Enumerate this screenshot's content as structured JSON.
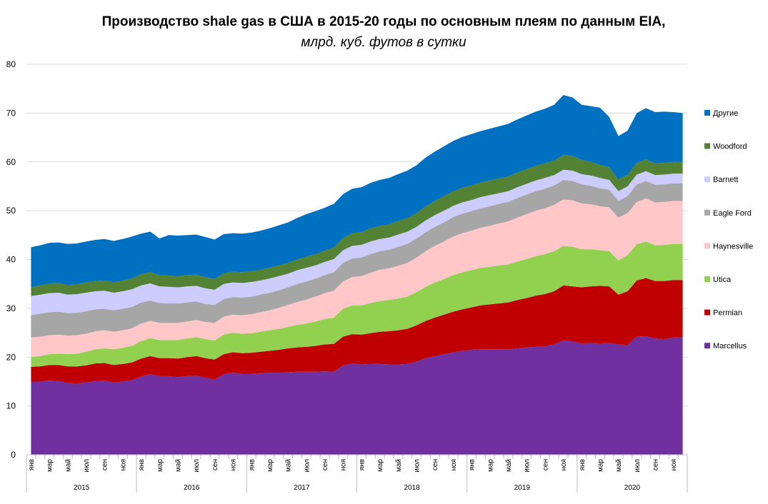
{
  "chart_data": {
    "type": "stacked_area",
    "title": "Производство shale gas в США в 2015-20 годы по основным плеям по данным EIA,",
    "subtitle": "млрд. куб. футов в сутки",
    "categories": [
      "янв",
      null,
      "мар",
      null,
      "май",
      null,
      "июл",
      null,
      "сен",
      null,
      "ноя",
      null,
      "янв",
      null,
      "мар",
      null,
      "май",
      null,
      "июл",
      null,
      "сен",
      null,
      "ноя",
      null,
      "янв",
      null,
      "мар",
      null,
      "май",
      null,
      "июл",
      null,
      "сен",
      null,
      "ноя",
      null,
      "янв",
      null,
      "мар",
      null,
      "май",
      null,
      "июл",
      null,
      "сен",
      null,
      "ноя",
      null,
      "янв",
      null,
      "мар",
      null,
      "май",
      null,
      "июл",
      null,
      "сен",
      null,
      "ноя",
      null,
      "янв",
      null,
      "мар",
      null,
      "май",
      null,
      "июл",
      null,
      "сен",
      null,
      "ноя",
      null
    ],
    "year_groups": [
      "2015",
      "2016",
      "2017",
      "2018",
      "2019",
      "2020"
    ],
    "ylim": [
      0,
      80
    ],
    "yticks": [
      0,
      10,
      20,
      30,
      40,
      50,
      60,
      70,
      80
    ],
    "grid": true,
    "legend": "right",
    "series": [
      {
        "name": "Marcellus",
        "color": "#7030a0",
        "values": [
          15,
          15,
          15.2,
          15.1,
          14.7,
          14.6,
          14.8,
          15.1,
          15.2,
          14.8,
          15,
          15.3,
          16,
          16.5,
          16.1,
          16.1,
          15.9,
          16.1,
          16.2,
          15.8,
          15.4,
          16.5,
          16.8,
          16.6,
          16.6,
          16.7,
          16.8,
          16.8,
          16.9,
          17,
          17,
          17,
          17.1,
          17,
          18.3,
          18.7,
          18.5,
          18.6,
          18.6,
          18.5,
          18.5,
          18.6,
          19.1,
          19.8,
          20.2,
          20.6,
          21,
          21.3,
          21.5,
          21.6,
          21.6,
          21.6,
          21.6,
          21.8,
          22,
          22.1,
          22.2,
          22.6,
          23.5,
          23.2,
          22.8,
          22.9,
          22.8,
          22.9,
          22.6,
          22.5,
          24.2,
          24.3,
          23.8,
          23.7,
          24,
          24.1
        ]
      },
      {
        "name": "Permian",
        "color": "#c00000",
        "values": [
          3.0,
          3.1,
          3.2,
          3.3,
          3.4,
          3.5,
          3.5,
          3.6,
          3.6,
          3.6,
          3.6,
          3.6,
          3.7,
          3.7,
          3.7,
          3.7,
          3.8,
          3.9,
          4.0,
          4.0,
          4.1,
          4.1,
          4.2,
          4.2,
          4.3,
          4.4,
          4.5,
          4.7,
          4.9,
          5.0,
          5.1,
          5.3,
          5.5,
          5.7,
          5.9,
          6.0,
          6.1,
          6.3,
          6.6,
          6.8,
          7.0,
          7.2,
          7.4,
          7.6,
          7.9,
          8.1,
          8.3,
          8.5,
          8.7,
          9.0,
          9.2,
          9.4,
          9.6,
          9.9,
          10.1,
          10.5,
          10.7,
          10.9,
          11.2,
          11.3,
          11.5,
          11.6,
          11.8,
          11.6,
          10.2,
          11.0,
          11.5,
          11.9,
          11.8,
          11.9,
          11.8,
          11.7
        ]
      },
      {
        "name": "Utica",
        "color": "#92d050",
        "values": [
          2.0,
          2.1,
          2.2,
          2.3,
          2.5,
          2.6,
          2.8,
          2.9,
          3.0,
          3.2,
          3.3,
          3.4,
          3.6,
          3.7,
          3.7,
          3.7,
          3.8,
          3.8,
          3.9,
          3.9,
          3.9,
          4.0,
          4.0,
          4.0,
          4.0,
          4.1,
          4.2,
          4.3,
          4.4,
          4.6,
          4.8,
          5.0,
          5.2,
          5.4,
          5.7,
          5.9,
          6.0,
          6.2,
          6.3,
          6.4,
          6.5,
          6.6,
          6.8,
          7.0,
          7.2,
          7.3,
          7.5,
          7.6,
          7.6,
          7.7,
          7.7,
          7.8,
          7.8,
          7.9,
          8.0,
          8.1,
          8.2,
          8.2,
          8.1,
          8.1,
          7.8,
          7.6,
          7.3,
          7.2,
          7.0,
          7.4,
          7.4,
          7.5,
          7.3,
          7.4,
          7.4,
          7.4
        ]
      },
      {
        "name": "Haynesville",
        "color": "#ffc7c7",
        "values": [
          4.0,
          4.0,
          3.9,
          3.9,
          3.8,
          3.8,
          3.7,
          3.7,
          3.7,
          3.6,
          3.6,
          3.6,
          3.6,
          3.5,
          3.5,
          3.5,
          3.5,
          3.5,
          3.5,
          3.5,
          3.6,
          3.7,
          3.7,
          3.8,
          3.9,
          4.0,
          4.1,
          4.3,
          4.5,
          4.7,
          4.9,
          5.1,
          5.3,
          5.5,
          5.6,
          5.8,
          6.0,
          6.2,
          6.4,
          6.5,
          6.7,
          6.9,
          7.1,
          7.3,
          7.5,
          7.7,
          7.9,
          8.0,
          8.1,
          8.2,
          8.4,
          8.6,
          8.8,
          9.0,
          9.2,
          9.3,
          9.4,
          9.5,
          9.5,
          9.5,
          9.4,
          9.2,
          9.0,
          9.0,
          8.8,
          8.6,
          8.7,
          8.8,
          8.8,
          8.8,
          8.8,
          8.8
        ]
      },
      {
        "name": "Eagle Ford",
        "color": "#a6a6a6",
        "values": [
          4.6,
          4.7,
          4.7,
          4.7,
          4.6,
          4.6,
          4.6,
          4.5,
          4.4,
          4.4,
          4.4,
          4.4,
          4.3,
          4.2,
          4.1,
          4.0,
          4.0,
          3.9,
          3.8,
          3.7,
          3.7,
          3.6,
          3.6,
          3.6,
          3.6,
          3.6,
          3.6,
          3.6,
          3.6,
          3.7,
          3.7,
          3.7,
          3.7,
          3.8,
          3.8,
          3.8,
          3.8,
          3.8,
          3.8,
          3.8,
          3.9,
          3.9,
          3.9,
          3.9,
          3.9,
          3.9,
          4.0,
          4.0,
          4.0,
          4.0,
          4.0,
          4.0,
          4.0,
          4.0,
          4.0,
          4.0,
          4.0,
          4.0,
          4.0,
          4.0,
          3.9,
          3.8,
          3.7,
          3.6,
          3.4,
          3.5,
          3.6,
          3.6,
          3.6,
          3.6,
          3.6,
          3.6
        ]
      },
      {
        "name": "Barnett",
        "color": "#ccccff",
        "values": [
          3.9,
          3.9,
          3.9,
          3.9,
          3.8,
          3.8,
          3.8,
          3.7,
          3.7,
          3.6,
          3.6,
          3.6,
          3.5,
          3.5,
          3.4,
          3.4,
          3.3,
          3.3,
          3.2,
          3.2,
          3.1,
          3.1,
          3.0,
          3.0,
          3.0,
          2.9,
          2.9,
          2.9,
          2.8,
          2.8,
          2.8,
          2.7,
          2.7,
          2.7,
          2.6,
          2.6,
          2.6,
          2.6,
          2.5,
          2.5,
          2.5,
          2.5,
          2.4,
          2.4,
          2.4,
          2.4,
          2.3,
          2.3,
          2.3,
          2.3,
          2.3,
          2.2,
          2.2,
          2.2,
          2.2,
          2.2,
          2.2,
          2.1,
          2.1,
          2.1,
          2.1,
          2.1,
          2.1,
          2.0,
          2.0,
          2.0,
          2.0,
          2.0,
          2.0,
          2.0,
          2.0,
          2.0
        ]
      },
      {
        "name": "Woodford",
        "color": "#548235",
        "values": [
          1.8,
          1.9,
          2.0,
          2.0,
          2.0,
          2.0,
          2.1,
          2.1,
          2.1,
          2.1,
          2.2,
          2.2,
          2.3,
          2.3,
          2.3,
          2.3,
          2.3,
          2.3,
          2.3,
          2.3,
          2.2,
          2.2,
          2.2,
          2.2,
          2.2,
          2.2,
          2.2,
          2.2,
          2.2,
          2.2,
          2.3,
          2.3,
          2.3,
          2.4,
          2.5,
          2.6,
          2.6,
          2.7,
          2.7,
          2.7,
          2.8,
          2.8,
          2.8,
          2.9,
          2.9,
          3.0,
          3.0,
          3.0,
          3.0,
          3.0,
          3.0,
          3.0,
          3.0,
          3.0,
          3.0,
          3.0,
          3.0,
          3.0,
          3.0,
          3.0,
          2.9,
          2.8,
          2.7,
          2.6,
          2.4,
          2.4,
          2.4,
          2.4,
          2.4,
          2.4,
          2.4,
          2.4
        ]
      },
      {
        "name": "Другие",
        "color": "#0070c0",
        "values": [
          8.2,
          8.2,
          8.3,
          8.3,
          8.4,
          8.4,
          8.4,
          8.4,
          8.5,
          8.5,
          8.5,
          8.6,
          8.3,
          8.3,
          7.5,
          8.3,
          8.3,
          8.2,
          8.2,
          8.2,
          8.1,
          8.0,
          7.9,
          7.9,
          7.9,
          8.0,
          8.1,
          8.2,
          8.3,
          8.5,
          8.7,
          8.8,
          8.8,
          8.9,
          9.0,
          9.1,
          9.2,
          9.3,
          9.4,
          9.5,
          9.6,
          9.7,
          9.8,
          10.0,
          10.1,
          10.2,
          10.3,
          10.4,
          10.5,
          10.5,
          10.6,
          10.7,
          10.8,
          10.9,
          11.0,
          11.1,
          11.2,
          11.4,
          12.3,
          12.0,
          11.3,
          11.4,
          11.7,
          10.3,
          8.9,
          9.0,
          10.2,
          10.5,
          10.5,
          10.5,
          10.2,
          10.0
        ]
      }
    ]
  }
}
